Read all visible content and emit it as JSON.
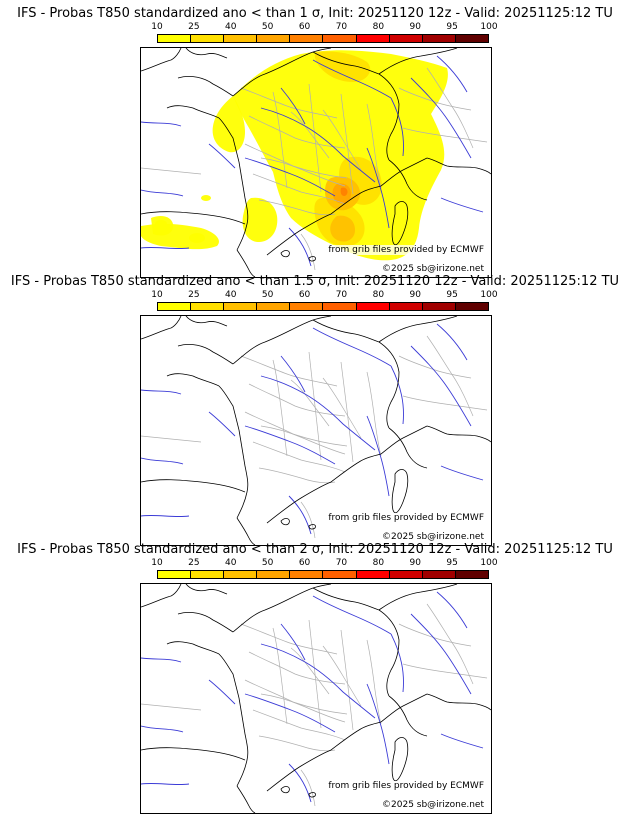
{
  "colorbar": {
    "ticks": [
      "10",
      "25",
      "40",
      "50",
      "60",
      "70",
      "80",
      "90",
      "95",
      "100"
    ],
    "colors": [
      "#ffff00",
      "#ffe000",
      "#ffc000",
      "#ffa500",
      "#ff8000",
      "#ff6000",
      "#ff0000",
      "#d00000",
      "#a00000",
      "#600000"
    ]
  },
  "colors": {
    "coastline": "#000000",
    "rivers": "#3b3bd6",
    "borders_internal": "#b0b0b0",
    "prob_10": "#ffff00",
    "prob_25": "#ffe000",
    "prob_40": "#ffc000",
    "prob_50": "#ffa500",
    "prob_60": "#ff8000"
  },
  "panels": [
    {
      "title": "IFS - Probas T850  standardized ano < than 1 σ, Init: 20251120 12z - Valid: 20251125:12 TU",
      "credit": "from grib files provided by ECMWF",
      "copyright": "©2025 sb@irizone.net",
      "has_probability_field": true
    },
    {
      "title": "IFS - Probas T850  standardized ano < than 1.5 σ, Init: 20251120 12z - Valid: 20251125:12 TU",
      "credit": "from grib files provided by ECMWF",
      "copyright": "©2025 sb@irizone.net",
      "has_probability_field": false
    },
    {
      "title": "IFS - Probas T850  standardized ano < than 2 σ, Init: 20251120 12z - Valid: 20251125:12 TU",
      "credit": "from grib files provided by ECMWF",
      "copyright": "©2025 sb@irizone.net",
      "has_probability_field": false
    }
  ]
}
